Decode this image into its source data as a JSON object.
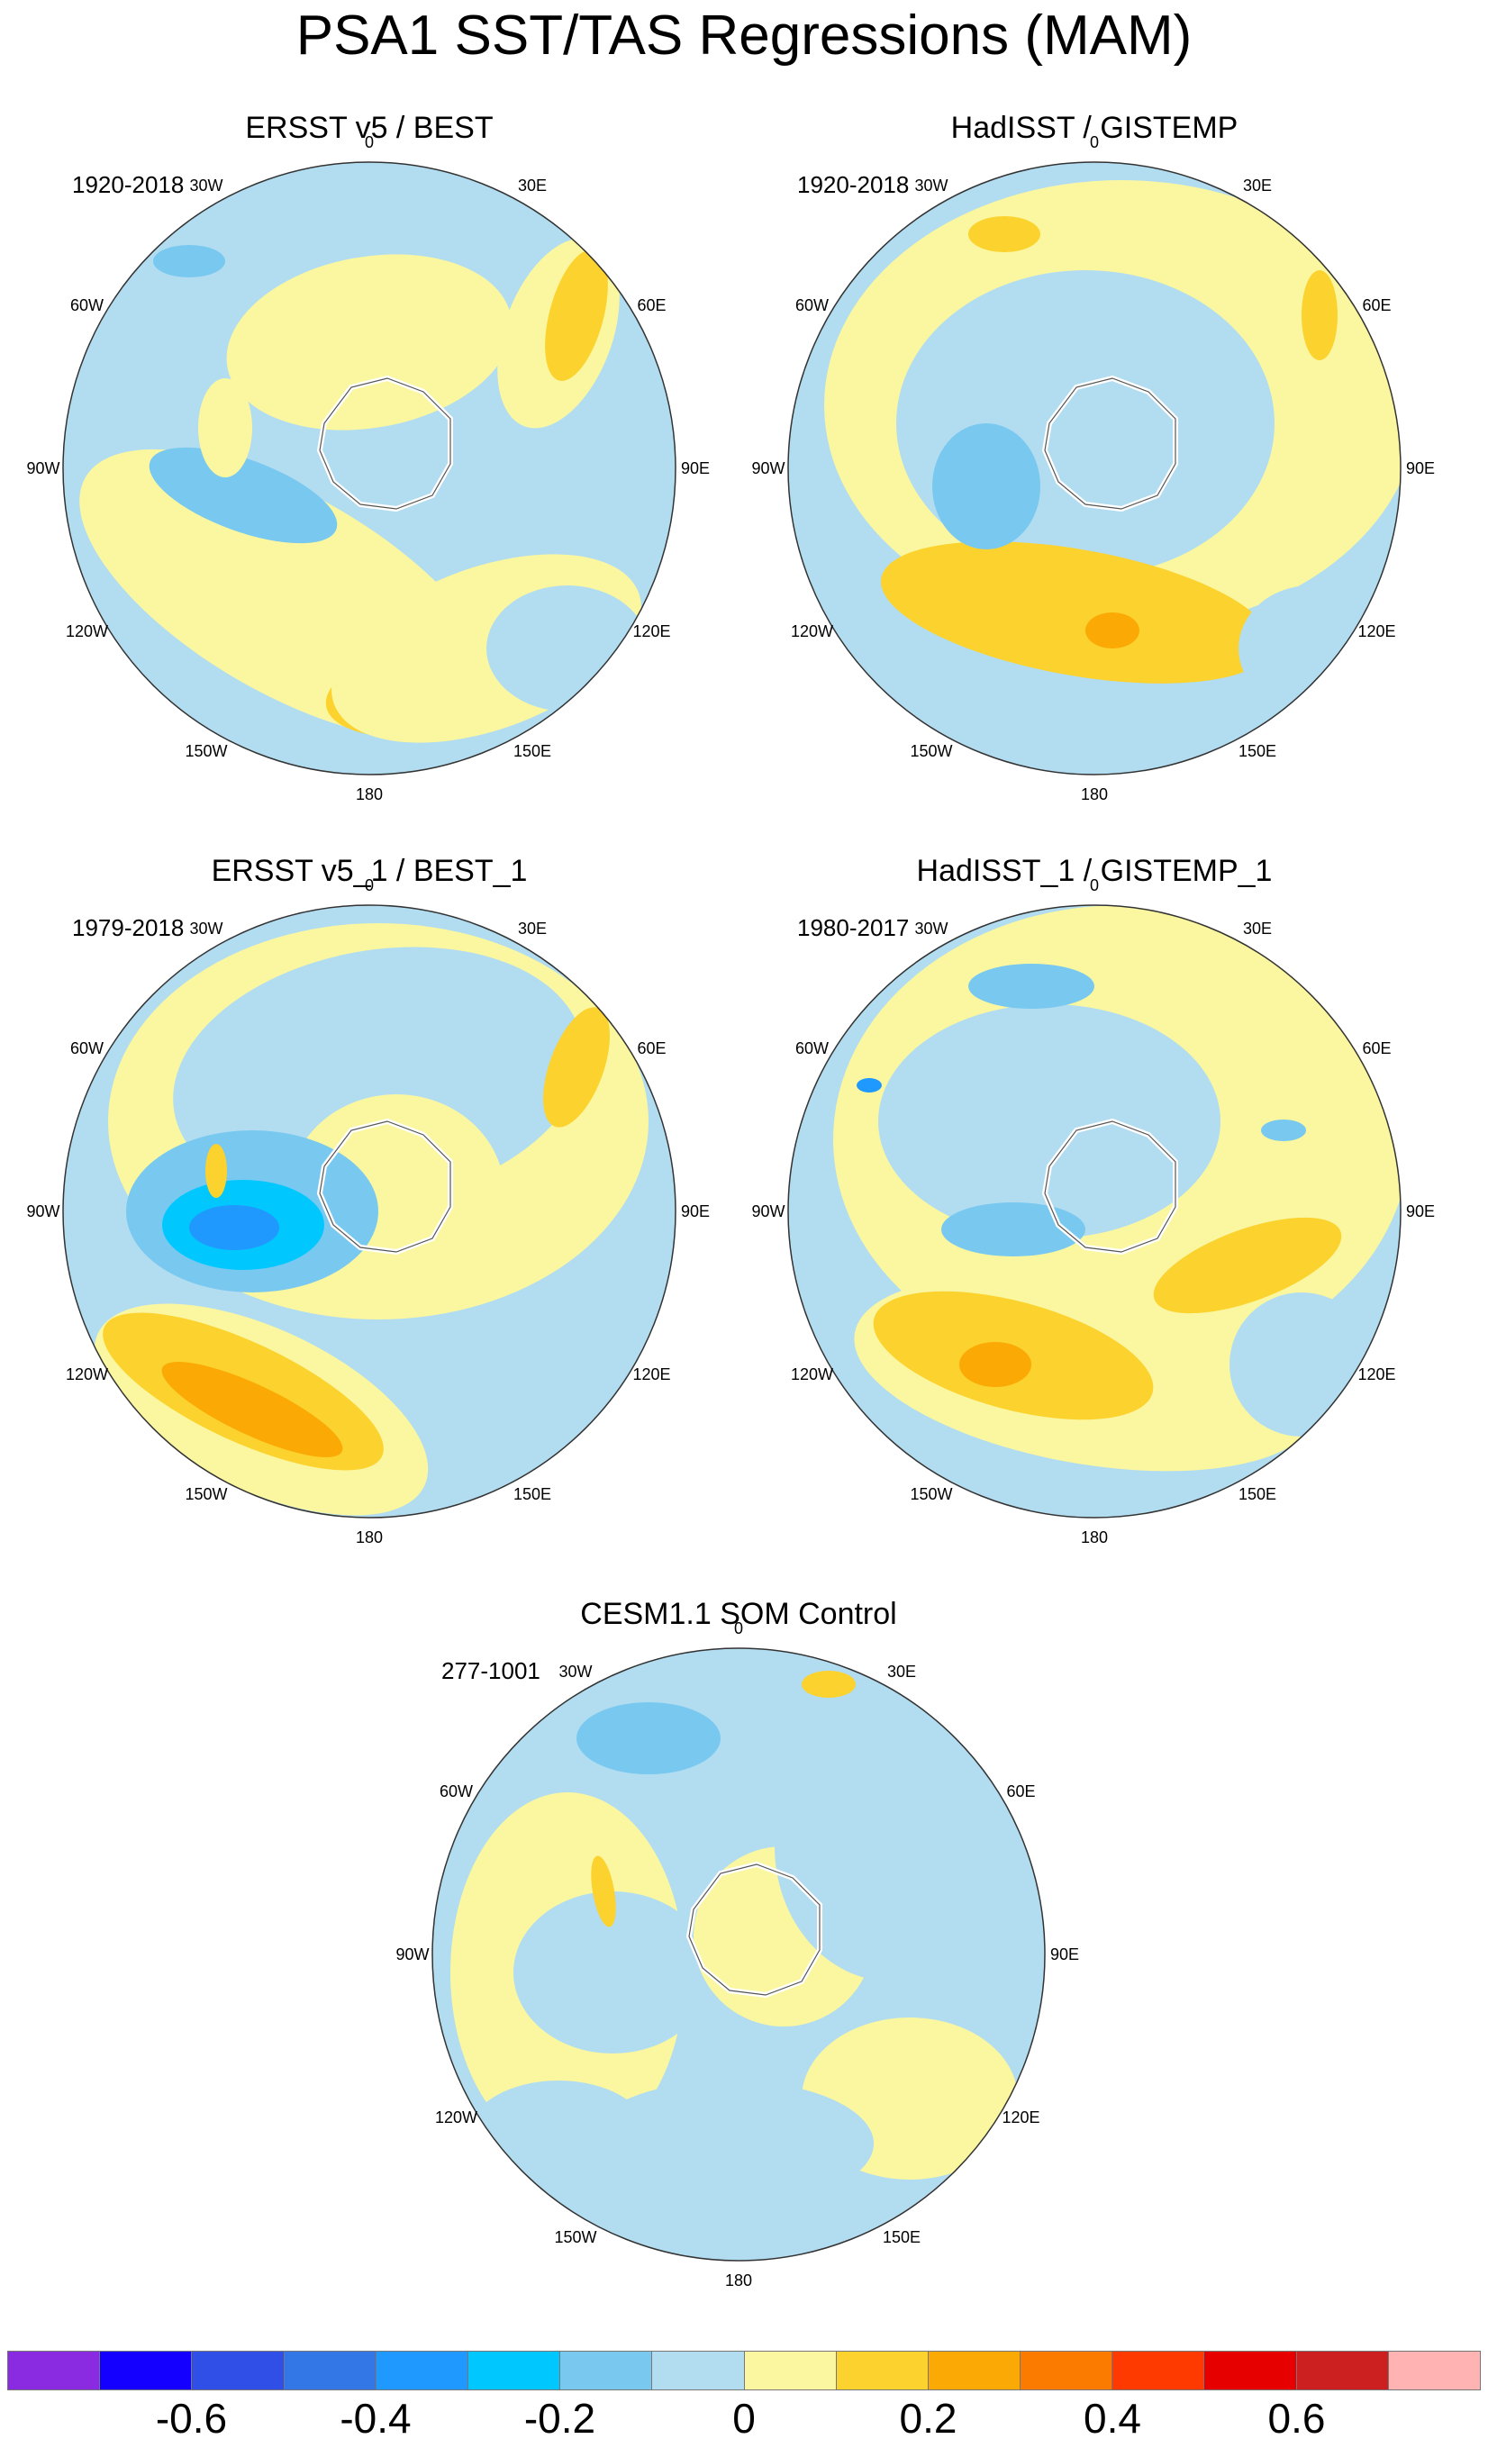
{
  "title": "PSA1 SST/TAS Regressions (MAM)",
  "panels": [
    {
      "title": "ERSST v5 / BEST",
      "period": "1920-2018"
    },
    {
      "title": "HadISST / GISTEMP",
      "period": "1920-2018"
    },
    {
      "title": "ERSST v5_1 / BEST_1",
      "period": "1979-2018"
    },
    {
      "title": "HadISST_1 / GISTEMP_1",
      "period": "1980-2017"
    },
    {
      "title": "CESM1.1 SOM Control",
      "period": "277-1001"
    }
  ],
  "longitude_labels": [
    "0",
    "30E",
    "60E",
    "90E",
    "120E",
    "150E",
    "180",
    "150W",
    "120W",
    "90W",
    "60W",
    "30W"
  ],
  "colorbar": {
    "colors": [
      "#8a2be2",
      "#1400ff",
      "#2f4fe6",
      "#3377e6",
      "#2099ff",
      "#00c8ff",
      "#78c8f0",
      "#b2dcf0",
      "#faf7a0",
      "#fcd22e",
      "#fba905",
      "#fb7b00",
      "#ff3a00",
      "#e60000",
      "#cc1f1f",
      "#ffb3b3"
    ],
    "labels": [
      "-0.6",
      "-0.4",
      "-0.2",
      "0",
      "0.2",
      "0.4",
      "0.6"
    ]
  }
}
